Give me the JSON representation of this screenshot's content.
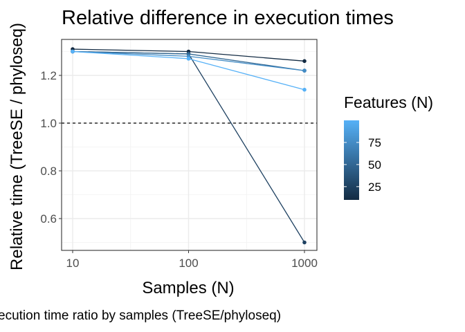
{
  "chart_data": {
    "type": "line",
    "title": "Relative difference in execution times",
    "xlabel": "Samples (N)",
    "ylabel": "Relative time (TreeSE / phyloseq)",
    "x_scale": "log10",
    "x": [
      10,
      100,
      1000
    ],
    "x_ticks": [
      "10",
      "100",
      "1000"
    ],
    "xlim": [
      10,
      1000
    ],
    "ylim": [
      0.5,
      1.31
    ],
    "y_ticks": [
      "0.6",
      "0.8",
      "1.0",
      "1.2"
    ],
    "reference_line": {
      "y": 1.0,
      "style": "dashed"
    },
    "grid": true,
    "series": [
      {
        "features": 10,
        "values": [
          1.31,
          1.3,
          1.26
        ]
      },
      {
        "features": 25,
        "values": [
          1.3,
          1.29,
          0.5
        ]
      },
      {
        "features": 50,
        "values": [
          1.3,
          1.29,
          1.22
        ]
      },
      {
        "features": 75,
        "values": [
          1.3,
          1.28,
          1.22
        ]
      },
      {
        "features": 100,
        "values": [
          1.3,
          1.27,
          1.14
        ]
      }
    ],
    "legend": {
      "title": "Features (N)",
      "position": "right",
      "labels": [
        "75",
        "50",
        "25"
      ],
      "label_values": [
        75,
        50,
        25
      ],
      "range": [
        10,
        100
      ],
      "color_low": "#132B43",
      "color_high": "#56B1F7"
    },
    "caption": "ecution time ratio by samples (TreeSE/phyloseq)"
  }
}
